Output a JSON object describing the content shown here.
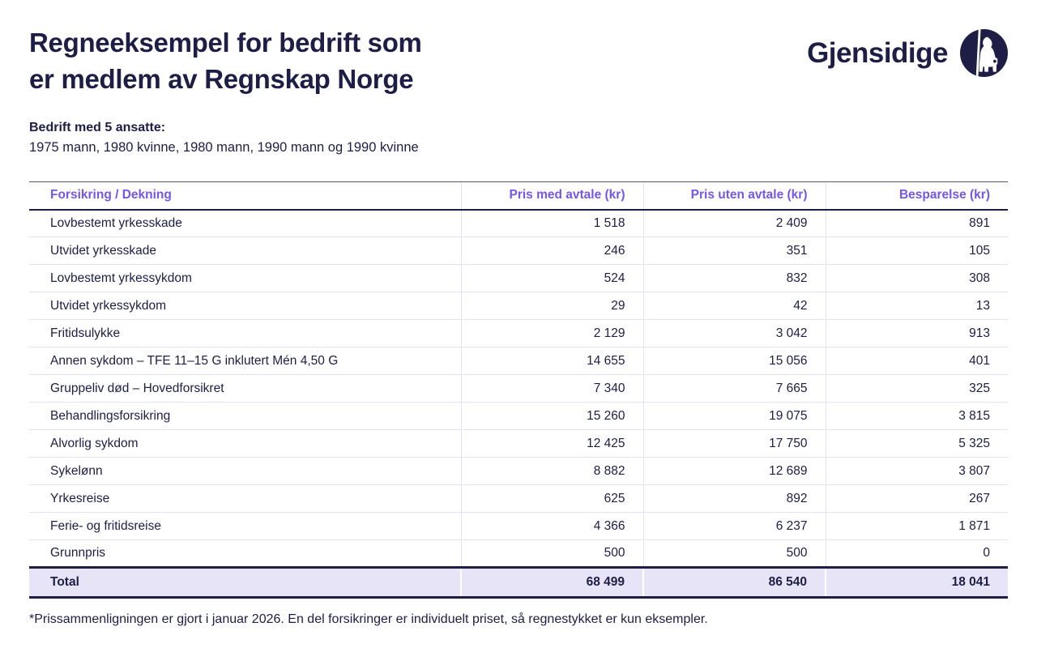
{
  "colors": {
    "navy": "#1d1d46",
    "purple": "#7456ee",
    "lavender": "#e8e4f8",
    "line": "#e4e0f6",
    "topline": "#55556d"
  },
  "header": {
    "title_line1": "Regneeksempel for bedrift som",
    "title_line2": "er medlem av Regnskap Norge",
    "brand_name": "Gjensidige"
  },
  "intro": {
    "bold_line": "Bedrift med 5 ansatte:",
    "detail_line": "1975 mann, 1980 kvinne, 1980 mann, 1990 mann og 1990 kvinne"
  },
  "table": {
    "columns": [
      "Forsikring / Dekning",
      "Pris med avtale (kr)",
      "Pris uten avtale (kr)",
      "Besparelse (kr)"
    ],
    "rows": [
      {
        "label": "Lovbestemt yrkesskade",
        "med": "1 518",
        "uten": "2 409",
        "besparelse": "891"
      },
      {
        "label": "Utvidet yrkesskade",
        "med": "246",
        "uten": "351",
        "besparelse": "105"
      },
      {
        "label": "Lovbestemt yrkessykdom",
        "med": "524",
        "uten": "832",
        "besparelse": "308"
      },
      {
        "label": "Utvidet yrkessykdom",
        "med": "29",
        "uten": "42",
        "besparelse": "13"
      },
      {
        "label": "Fritidsulykke",
        "med": "2 129",
        "uten": "3 042",
        "besparelse": "913"
      },
      {
        "label": "Annen sykdom – TFE 11–15 G inklutert Mén  4,50 G",
        "med": "14 655",
        "uten": "15 056",
        "besparelse": "401"
      },
      {
        "label": "Gruppeliv død – Hovedforsikret",
        "med": "7 340",
        "uten": "7 665",
        "besparelse": "325"
      },
      {
        "label": "Behandlingsforsikring",
        "med": "15 260",
        "uten": "19 075",
        "besparelse": "3 815"
      },
      {
        "label": "Alvorlig sykdom",
        "med": "12 425",
        "uten": "17 750",
        "besparelse": "5 325"
      },
      {
        "label": "Sykelønn",
        "med": "8 882",
        "uten": "12 689",
        "besparelse": "3 807"
      },
      {
        "label": "Yrkesreise",
        "med": "625",
        "uten": "892",
        "besparelse": "267"
      },
      {
        "label": "Ferie- og fritidsreise",
        "med": "4 366",
        "uten": "6 237",
        "besparelse": "1 871"
      },
      {
        "label": "Grunnpris",
        "med": "500",
        "uten": "500",
        "besparelse": "0"
      }
    ],
    "total": {
      "label": "Total",
      "med": "68 499",
      "uten": "86 540",
      "besparelse": "18 041"
    }
  },
  "footnote": "*Prissammenligningen er gjort i januar 2026. En del forsikringer er individuelt priset, så regnestykket er kun eksempler."
}
